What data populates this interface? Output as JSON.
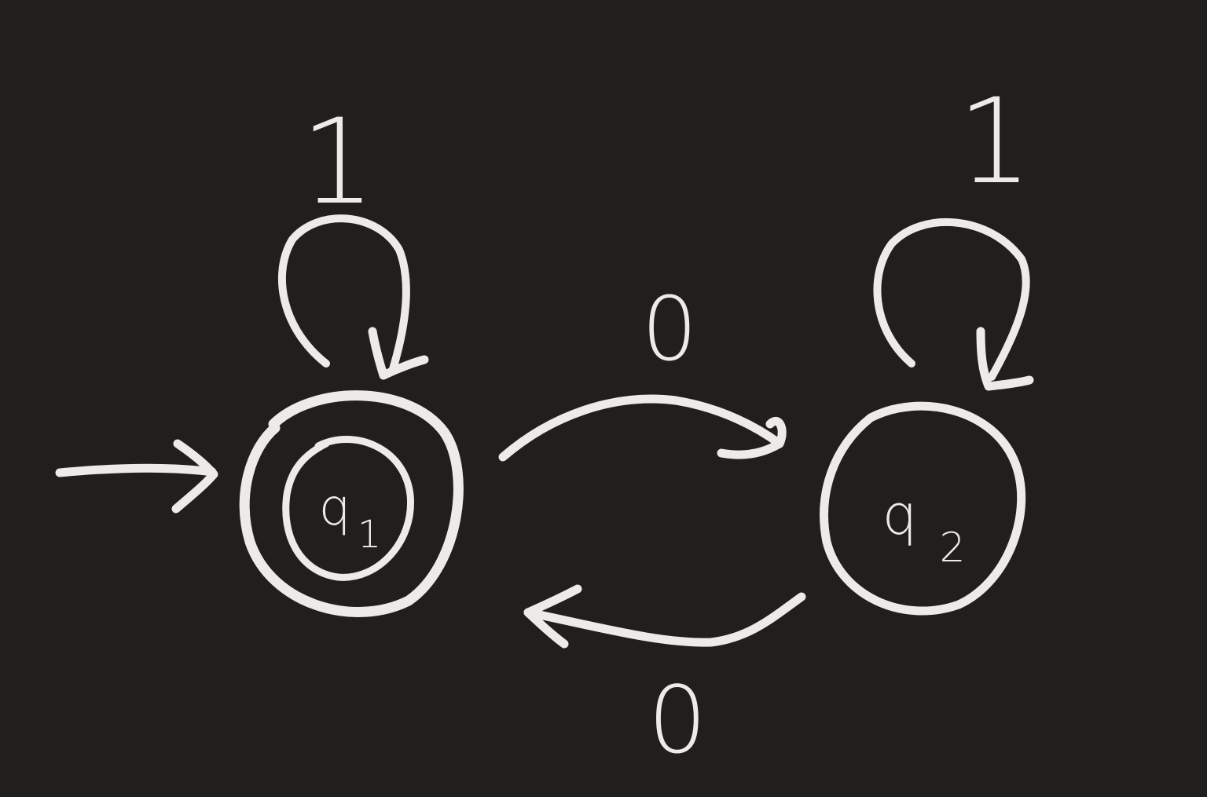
{
  "diagram": {
    "type": "finite-automaton",
    "colors": {
      "background": "#201f1d",
      "ink": "#ecebe8"
    },
    "states": [
      {
        "id": "q1",
        "label_main": "q",
        "label_sub": "1",
        "start": true,
        "accepting": true
      },
      {
        "id": "q2",
        "label_main": "q",
        "label_sub": "2",
        "start": false,
        "accepting": false
      }
    ],
    "transitions": [
      {
        "from": "q1",
        "to": "q1",
        "symbol": "1"
      },
      {
        "from": "q2",
        "to": "q2",
        "symbol": "1"
      },
      {
        "from": "q1",
        "to": "q2",
        "symbol": "0"
      },
      {
        "from": "q2",
        "to": "q1",
        "symbol": "0"
      }
    ]
  }
}
